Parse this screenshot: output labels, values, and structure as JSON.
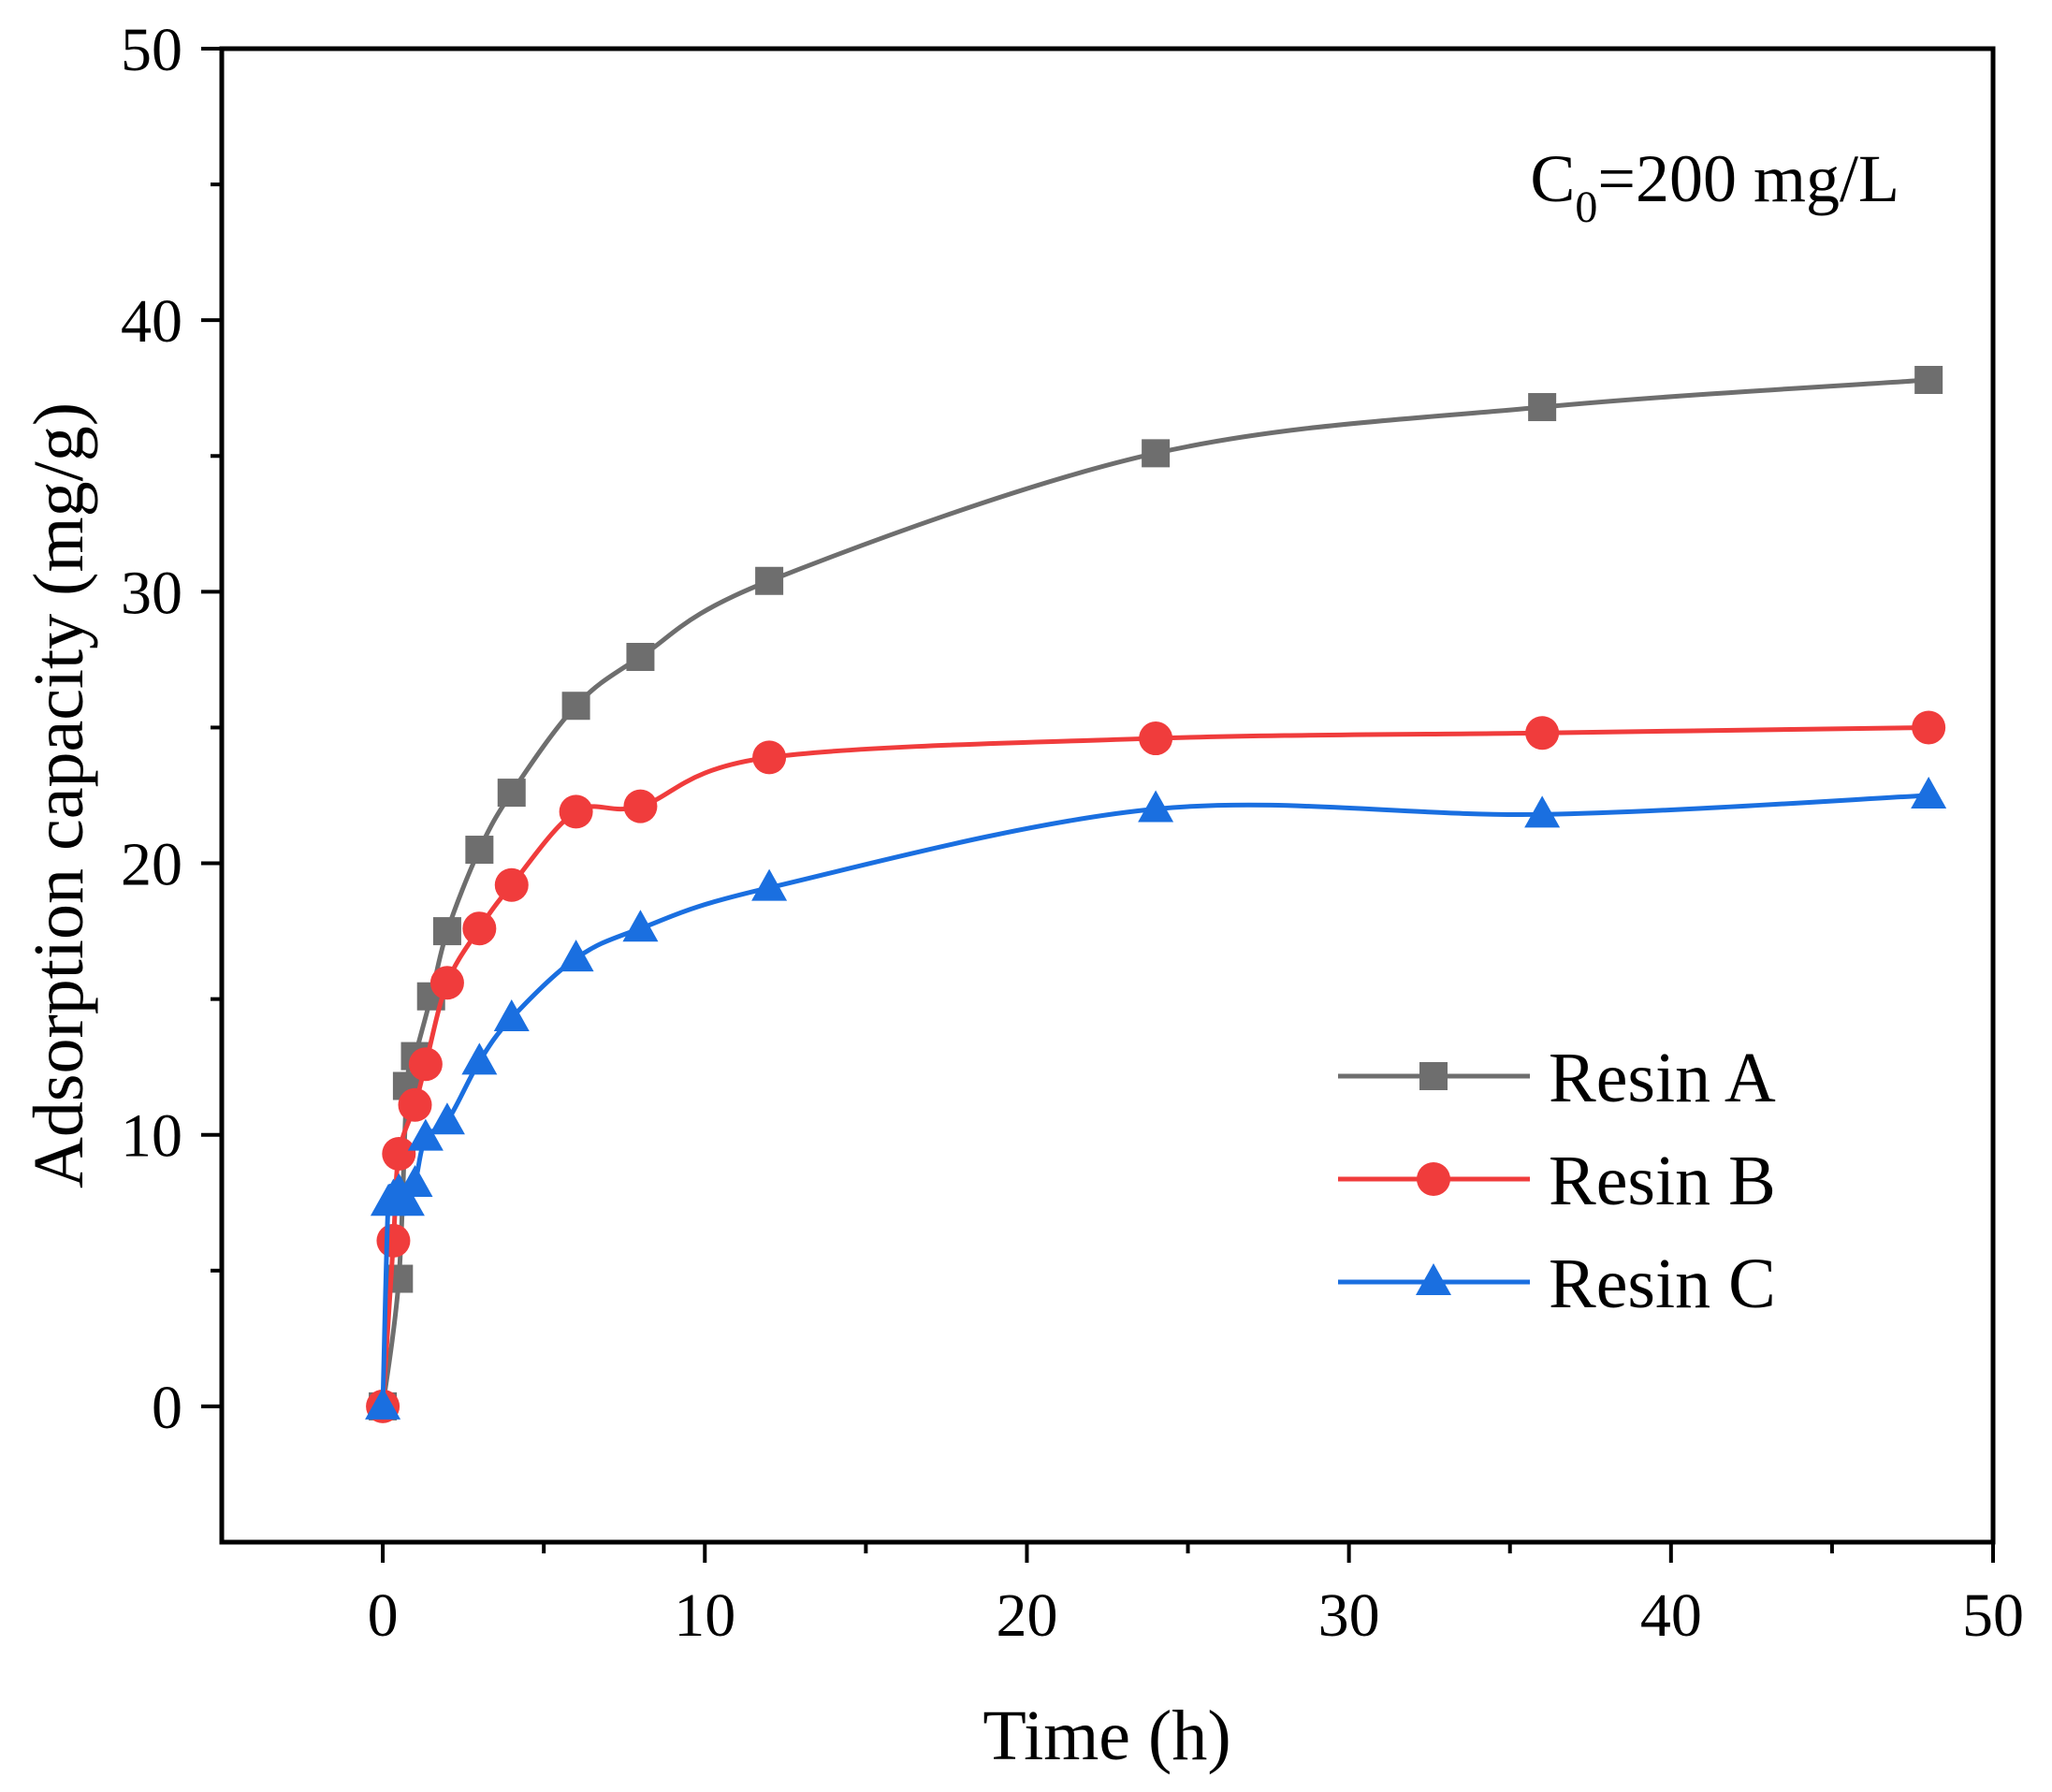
{
  "chart_data": {
    "type": "line",
    "title": "",
    "xlabel": "Time (h)",
    "ylabel": "Adsorption capacity (mg/g)",
    "xlim": [
      -5,
      50
    ],
    "ylim": [
      -5,
      50
    ],
    "xticks": [
      0,
      10,
      20,
      30,
      40,
      50
    ],
    "yticks": [
      0,
      10,
      20,
      30,
      40,
      50
    ],
    "grid": false,
    "legend_position": "bottom-right",
    "annotation": {
      "main": "C",
      "sub": "0",
      "rest": "=200 mg/L"
    },
    "series": [
      {
        "name": "Resin A",
        "color": "#6e6e6e",
        "marker": "square",
        "x": [
          0,
          0.5,
          0.75,
          1,
          1.5,
          2,
          3,
          4,
          6,
          8,
          12,
          24,
          36,
          48
        ],
        "y": [
          0,
          4.7,
          11.8,
          12.9,
          15.1,
          17.5,
          20.5,
          22.6,
          25.8,
          27.6,
          30.4,
          35.1,
          36.8,
          37.8
        ]
      },
      {
        "name": "Resin B",
        "color": "#f03c3c",
        "marker": "circle",
        "x": [
          0,
          0.33,
          0.5,
          1,
          1.33,
          2,
          3,
          4,
          6,
          8,
          12,
          24,
          36,
          48
        ],
        "y": [
          0,
          6.1,
          9.3,
          11.1,
          12.6,
          15.6,
          17.6,
          19.2,
          21.9,
          22.1,
          23.9,
          24.6,
          24.8,
          25.0
        ]
      },
      {
        "name": "Resin C",
        "color": "#1a6fe0",
        "marker": "triangle",
        "x": [
          0,
          0.17,
          0.33,
          0.5,
          0.75,
          1,
          1.33,
          2,
          3,
          4,
          6,
          8,
          12,
          24,
          36,
          48
        ],
        "y": [
          0,
          7.5,
          7.7,
          7.9,
          7.5,
          8.2,
          9.9,
          10.5,
          12.7,
          14.3,
          16.5,
          17.6,
          19.1,
          22.0,
          21.8,
          22.5
        ]
      }
    ]
  }
}
